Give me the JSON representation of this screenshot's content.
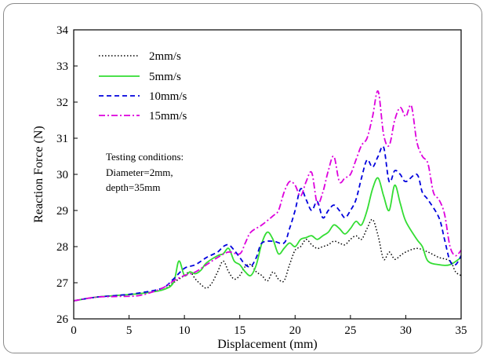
{
  "chart_data": {
    "type": "line",
    "xlabel": "Displacement (mm)",
    "ylabel": "Reaction Force (N)",
    "xlim": [
      0,
      35
    ],
    "ylim": [
      26,
      34
    ],
    "xticks": [
      "0",
      "5",
      "10",
      "15",
      "20",
      "25",
      "30",
      "35"
    ],
    "yticks": [
      "26",
      "27",
      "28",
      "29",
      "30",
      "31",
      "32",
      "33",
      "34"
    ],
    "grid": false,
    "legend_position": "top-left",
    "annotation": [
      "Testing conditions:",
      "Diameter=2mm,",
      "depth=35mm"
    ],
    "series": [
      {
        "name": "2mm/s",
        "color": "#000000",
        "dash": "dotted",
        "points": [
          [
            0,
            26.5
          ],
          [
            2,
            26.6
          ],
          [
            4,
            26.65
          ],
          [
            6,
            26.7
          ],
          [
            8,
            26.8
          ],
          [
            9,
            27.0
          ],
          [
            10,
            27.2
          ],
          [
            10.5,
            27.3
          ],
          [
            11,
            27.1
          ],
          [
            11.5,
            26.95
          ],
          [
            12,
            26.85
          ],
          [
            12.5,
            27.0
          ],
          [
            13,
            27.3
          ],
          [
            13.5,
            27.6
          ],
          [
            14,
            27.3
          ],
          [
            14.5,
            27.1
          ],
          [
            15,
            27.2
          ],
          [
            15.5,
            27.45
          ],
          [
            16,
            27.5
          ],
          [
            16.5,
            27.3
          ],
          [
            17,
            27.2
          ],
          [
            17.5,
            27.05
          ],
          [
            18,
            27.3
          ],
          [
            18.5,
            27.1
          ],
          [
            19,
            27.05
          ],
          [
            19.5,
            27.5
          ],
          [
            20,
            27.9
          ],
          [
            20.5,
            28.0
          ],
          [
            21,
            28.2
          ],
          [
            21.5,
            28.05
          ],
          [
            22,
            27.95
          ],
          [
            22.5,
            28.0
          ],
          [
            23,
            28.05
          ],
          [
            23.5,
            28.15
          ],
          [
            24,
            28.1
          ],
          [
            24.5,
            28.05
          ],
          [
            25,
            28.2
          ],
          [
            25.5,
            28.3
          ],
          [
            26,
            28.2
          ],
          [
            26.5,
            28.5
          ],
          [
            27,
            28.75
          ],
          [
            27.5,
            28.3
          ],
          [
            28,
            27.65
          ],
          [
            28.5,
            27.85
          ],
          [
            29,
            27.65
          ],
          [
            29.5,
            27.75
          ],
          [
            30,
            27.85
          ],
          [
            31,
            27.95
          ],
          [
            32,
            27.85
          ],
          [
            33,
            27.7
          ],
          [
            34,
            27.6
          ],
          [
            34.5,
            27.3
          ],
          [
            35,
            27.2
          ]
        ]
      },
      {
        "name": "5mm/s",
        "color": "#33dd33",
        "dash": "solid",
        "points": [
          [
            0,
            26.5
          ],
          [
            2,
            26.6
          ],
          [
            4,
            26.65
          ],
          [
            6,
            26.7
          ],
          [
            8,
            26.8
          ],
          [
            9,
            27.0
          ],
          [
            9.5,
            27.6
          ],
          [
            10,
            27.2
          ],
          [
            10.5,
            27.3
          ],
          [
            11,
            27.25
          ],
          [
            11.5,
            27.35
          ],
          [
            12,
            27.55
          ],
          [
            13,
            27.75
          ],
          [
            13.5,
            27.8
          ],
          [
            14,
            27.95
          ],
          [
            14.5,
            27.6
          ],
          [
            15,
            27.5
          ],
          [
            15.5,
            27.3
          ],
          [
            16,
            27.2
          ],
          [
            16.5,
            27.5
          ],
          [
            17,
            28.1
          ],
          [
            17.5,
            28.4
          ],
          [
            18,
            28.2
          ],
          [
            18.5,
            27.8
          ],
          [
            19,
            27.95
          ],
          [
            19.5,
            28.1
          ],
          [
            20,
            28.0
          ],
          [
            20.5,
            28.2
          ],
          [
            21,
            28.25
          ],
          [
            21.5,
            28.3
          ],
          [
            22,
            28.2
          ],
          [
            22.5,
            28.3
          ],
          [
            23,
            28.4
          ],
          [
            23.5,
            28.6
          ],
          [
            24,
            28.5
          ],
          [
            24.5,
            28.35
          ],
          [
            25,
            28.5
          ],
          [
            25.5,
            28.7
          ],
          [
            26,
            28.6
          ],
          [
            26.5,
            29.0
          ],
          [
            27,
            29.6
          ],
          [
            27.5,
            29.9
          ],
          [
            28,
            29.4
          ],
          [
            28.5,
            29.0
          ],
          [
            29,
            29.7
          ],
          [
            29.5,
            29.2
          ],
          [
            30,
            28.7
          ],
          [
            31,
            28.2
          ],
          [
            31.5,
            28.0
          ],
          [
            32,
            27.6
          ],
          [
            33,
            27.5
          ],
          [
            34,
            27.5
          ],
          [
            35,
            27.7
          ]
        ]
      },
      {
        "name": "10mm/s",
        "color": "#0000dd",
        "dash": "dashed",
        "points": [
          [
            0,
            26.5
          ],
          [
            2,
            26.6
          ],
          [
            4,
            26.65
          ],
          [
            6,
            26.72
          ],
          [
            8,
            26.85
          ],
          [
            9,
            27.1
          ],
          [
            10,
            27.4
          ],
          [
            11,
            27.5
          ],
          [
            12,
            27.7
          ],
          [
            13,
            27.85
          ],
          [
            13.5,
            28.0
          ],
          [
            14,
            28.05
          ],
          [
            14.5,
            27.9
          ],
          [
            15,
            27.7
          ],
          [
            15.5,
            27.5
          ],
          [
            16,
            27.45
          ],
          [
            16.5,
            27.7
          ],
          [
            17,
            28.1
          ],
          [
            18,
            28.15
          ],
          [
            19,
            28.1
          ],
          [
            19.5,
            28.5
          ],
          [
            20,
            29.0
          ],
          [
            20.5,
            29.6
          ],
          [
            21,
            29.3
          ],
          [
            21.5,
            29.0
          ],
          [
            22,
            29.25
          ],
          [
            22.5,
            28.8
          ],
          [
            23,
            29.0
          ],
          [
            23.5,
            29.15
          ],
          [
            24,
            29.0
          ],
          [
            24.5,
            28.8
          ],
          [
            25,
            29.0
          ],
          [
            25.5,
            29.3
          ],
          [
            26,
            29.9
          ],
          [
            26.5,
            30.4
          ],
          [
            27,
            30.2
          ],
          [
            27.5,
            30.5
          ],
          [
            28,
            30.75
          ],
          [
            28.5,
            29.8
          ],
          [
            29,
            30.1
          ],
          [
            29.5,
            30.0
          ],
          [
            30,
            29.8
          ],
          [
            31,
            30.0
          ],
          [
            31.5,
            29.5
          ],
          [
            32,
            29.3
          ],
          [
            33,
            28.8
          ],
          [
            33.5,
            28.2
          ],
          [
            34,
            27.6
          ],
          [
            34.5,
            27.5
          ],
          [
            35,
            27.75
          ]
        ]
      },
      {
        "name": "15mm/s",
        "color": "#dd00dd",
        "dash": "dashdot",
        "points": [
          [
            0,
            26.5
          ],
          [
            2,
            26.6
          ],
          [
            4,
            26.62
          ],
          [
            6,
            26.65
          ],
          [
            8,
            26.85
          ],
          [
            9,
            27.05
          ],
          [
            10,
            27.2
          ],
          [
            11,
            27.3
          ],
          [
            12,
            27.5
          ],
          [
            13,
            27.7
          ],
          [
            14,
            27.85
          ],
          [
            15,
            27.8
          ],
          [
            15.5,
            28.1
          ],
          [
            16,
            28.4
          ],
          [
            17,
            28.6
          ],
          [
            18,
            28.85
          ],
          [
            18.5,
            29.0
          ],
          [
            19,
            29.5
          ],
          [
            19.5,
            29.8
          ],
          [
            20,
            29.7
          ],
          [
            20.5,
            29.4
          ],
          [
            21,
            29.8
          ],
          [
            21.5,
            30.05
          ],
          [
            22,
            29.2
          ],
          [
            22.5,
            29.5
          ],
          [
            23,
            30.1
          ],
          [
            23.5,
            30.5
          ],
          [
            24,
            29.8
          ],
          [
            24.5,
            29.9
          ],
          [
            25,
            30.0
          ],
          [
            25.5,
            30.4
          ],
          [
            26,
            30.8
          ],
          [
            26.5,
            31.0
          ],
          [
            27,
            31.6
          ],
          [
            27.5,
            32.3
          ],
          [
            28,
            31.1
          ],
          [
            28.5,
            30.8
          ],
          [
            29,
            31.5
          ],
          [
            29.5,
            31.85
          ],
          [
            30,
            31.6
          ],
          [
            30.5,
            31.9
          ],
          [
            31,
            30.9
          ],
          [
            31.5,
            30.5
          ],
          [
            32,
            30.3
          ],
          [
            32.5,
            29.5
          ],
          [
            33,
            29.3
          ],
          [
            33.5,
            28.9
          ],
          [
            34,
            28.0
          ],
          [
            34.5,
            27.75
          ],
          [
            35,
            27.9
          ]
        ]
      }
    ]
  }
}
